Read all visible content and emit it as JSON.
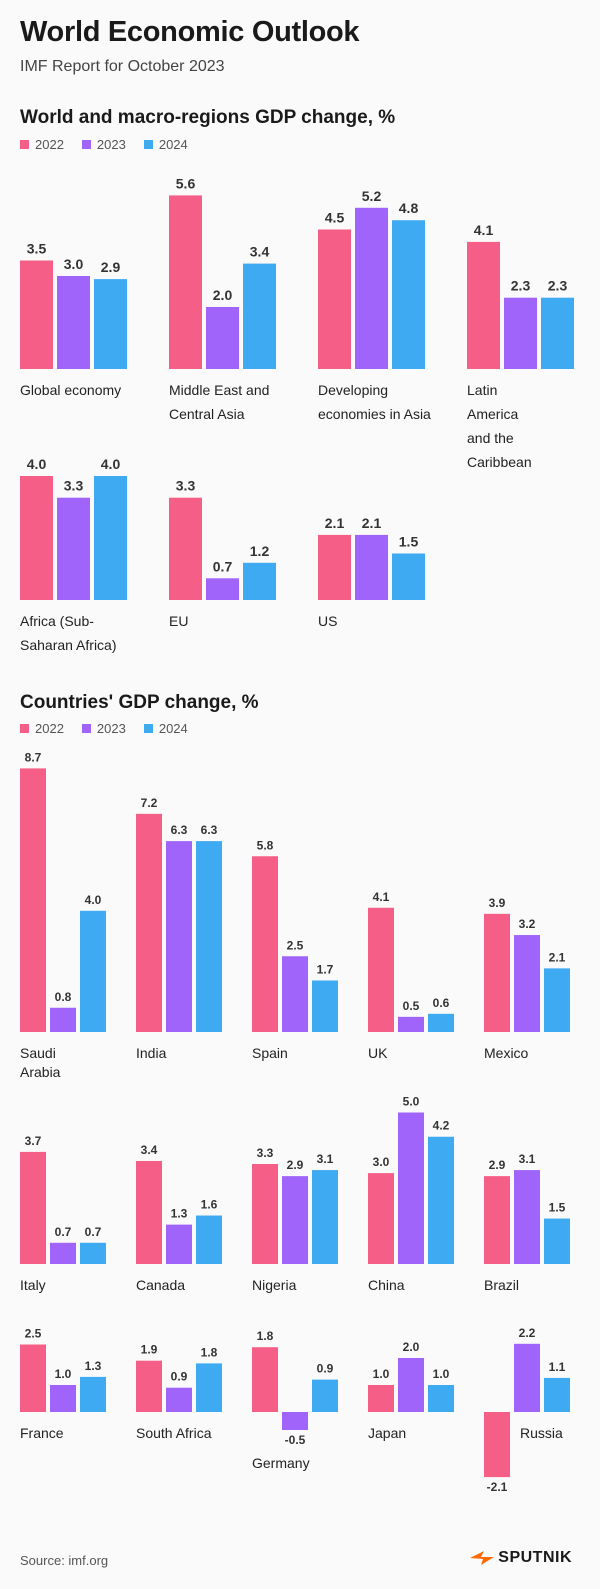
{
  "title": "World Economic Outlook",
  "subtitle": "IMF Report for October 2023",
  "source": "Source: imf.org",
  "brand": "SPUTNIK",
  "colors": {
    "2022": "#f55f87",
    "2023": "#a064fa",
    "2024": "#3eaaf2",
    "value_text": "#333333"
  },
  "sections": [
    {
      "title": "World and macro-regions GDP change, %",
      "legend": [
        "2022",
        "2023",
        "2024"
      ]
    },
    {
      "title": "Countries' GDP change, %",
      "legend": [
        "2022",
        "2023",
        "2024"
      ]
    }
  ],
  "chart_data": [
    {
      "type": "bar",
      "title": "World and macro-regions GDP change, %",
      "series_names": [
        "2022",
        "2023",
        "2024"
      ],
      "groups": [
        {
          "label": "Global economy",
          "values": [
            3.5,
            3.0,
            2.9
          ]
        },
        {
          "label": "Middle East and Central Asia",
          "values": [
            5.6,
            2.0,
            3.4
          ]
        },
        {
          "label": "Developing economies in Asia",
          "values": [
            4.5,
            5.2,
            4.8
          ]
        },
        {
          "label": "Latin America and the Caribbean",
          "values": [
            4.1,
            2.3,
            2.3
          ]
        },
        {
          "label": "Africa (Sub-Saharan Africa)",
          "values": [
            4.0,
            3.3,
            4.0
          ]
        },
        {
          "label": "EU",
          "values": [
            3.3,
            0.7,
            1.2
          ]
        },
        {
          "label": "US",
          "values": [
            2.1,
            2.1,
            1.5
          ]
        }
      ]
    },
    {
      "type": "bar",
      "title": "Countries' GDP change, %",
      "series_names": [
        "2022",
        "2023",
        "2024"
      ],
      "groups": [
        {
          "label": "Saudi Arabia",
          "values": [
            8.7,
            0.8,
            4.0
          ]
        },
        {
          "label": "India",
          "values": [
            7.2,
            6.3,
            6.3
          ]
        },
        {
          "label": "Spain",
          "values": [
            5.8,
            2.5,
            1.7
          ]
        },
        {
          "label": "UK",
          "values": [
            4.1,
            0.5,
            0.6
          ]
        },
        {
          "label": "Mexico",
          "values": [
            3.9,
            3.2,
            2.1
          ]
        },
        {
          "label": "Italy",
          "values": [
            3.7,
            0.7,
            0.7
          ]
        },
        {
          "label": "Canada",
          "values": [
            3.4,
            1.3,
            1.6
          ]
        },
        {
          "label": "Nigeria",
          "values": [
            3.3,
            2.9,
            3.1
          ]
        },
        {
          "label": "China",
          "values": [
            3.0,
            5.0,
            4.2
          ]
        },
        {
          "label": "Brazil",
          "values": [
            2.9,
            3.1,
            1.5
          ]
        },
        {
          "label": "France",
          "values": [
            2.5,
            1.0,
            1.3
          ]
        },
        {
          "label": "South Africa",
          "values": [
            1.9,
            0.9,
            1.8
          ]
        },
        {
          "label": "Germany",
          "values": [
            1.8,
            -0.5,
            0.9
          ]
        },
        {
          "label": "Japan",
          "values": [
            1.0,
            2.0,
            1.0
          ]
        },
        {
          "label": "Russia",
          "values": [
            -2.1,
            2.2,
            1.1
          ]
        }
      ]
    }
  ]
}
